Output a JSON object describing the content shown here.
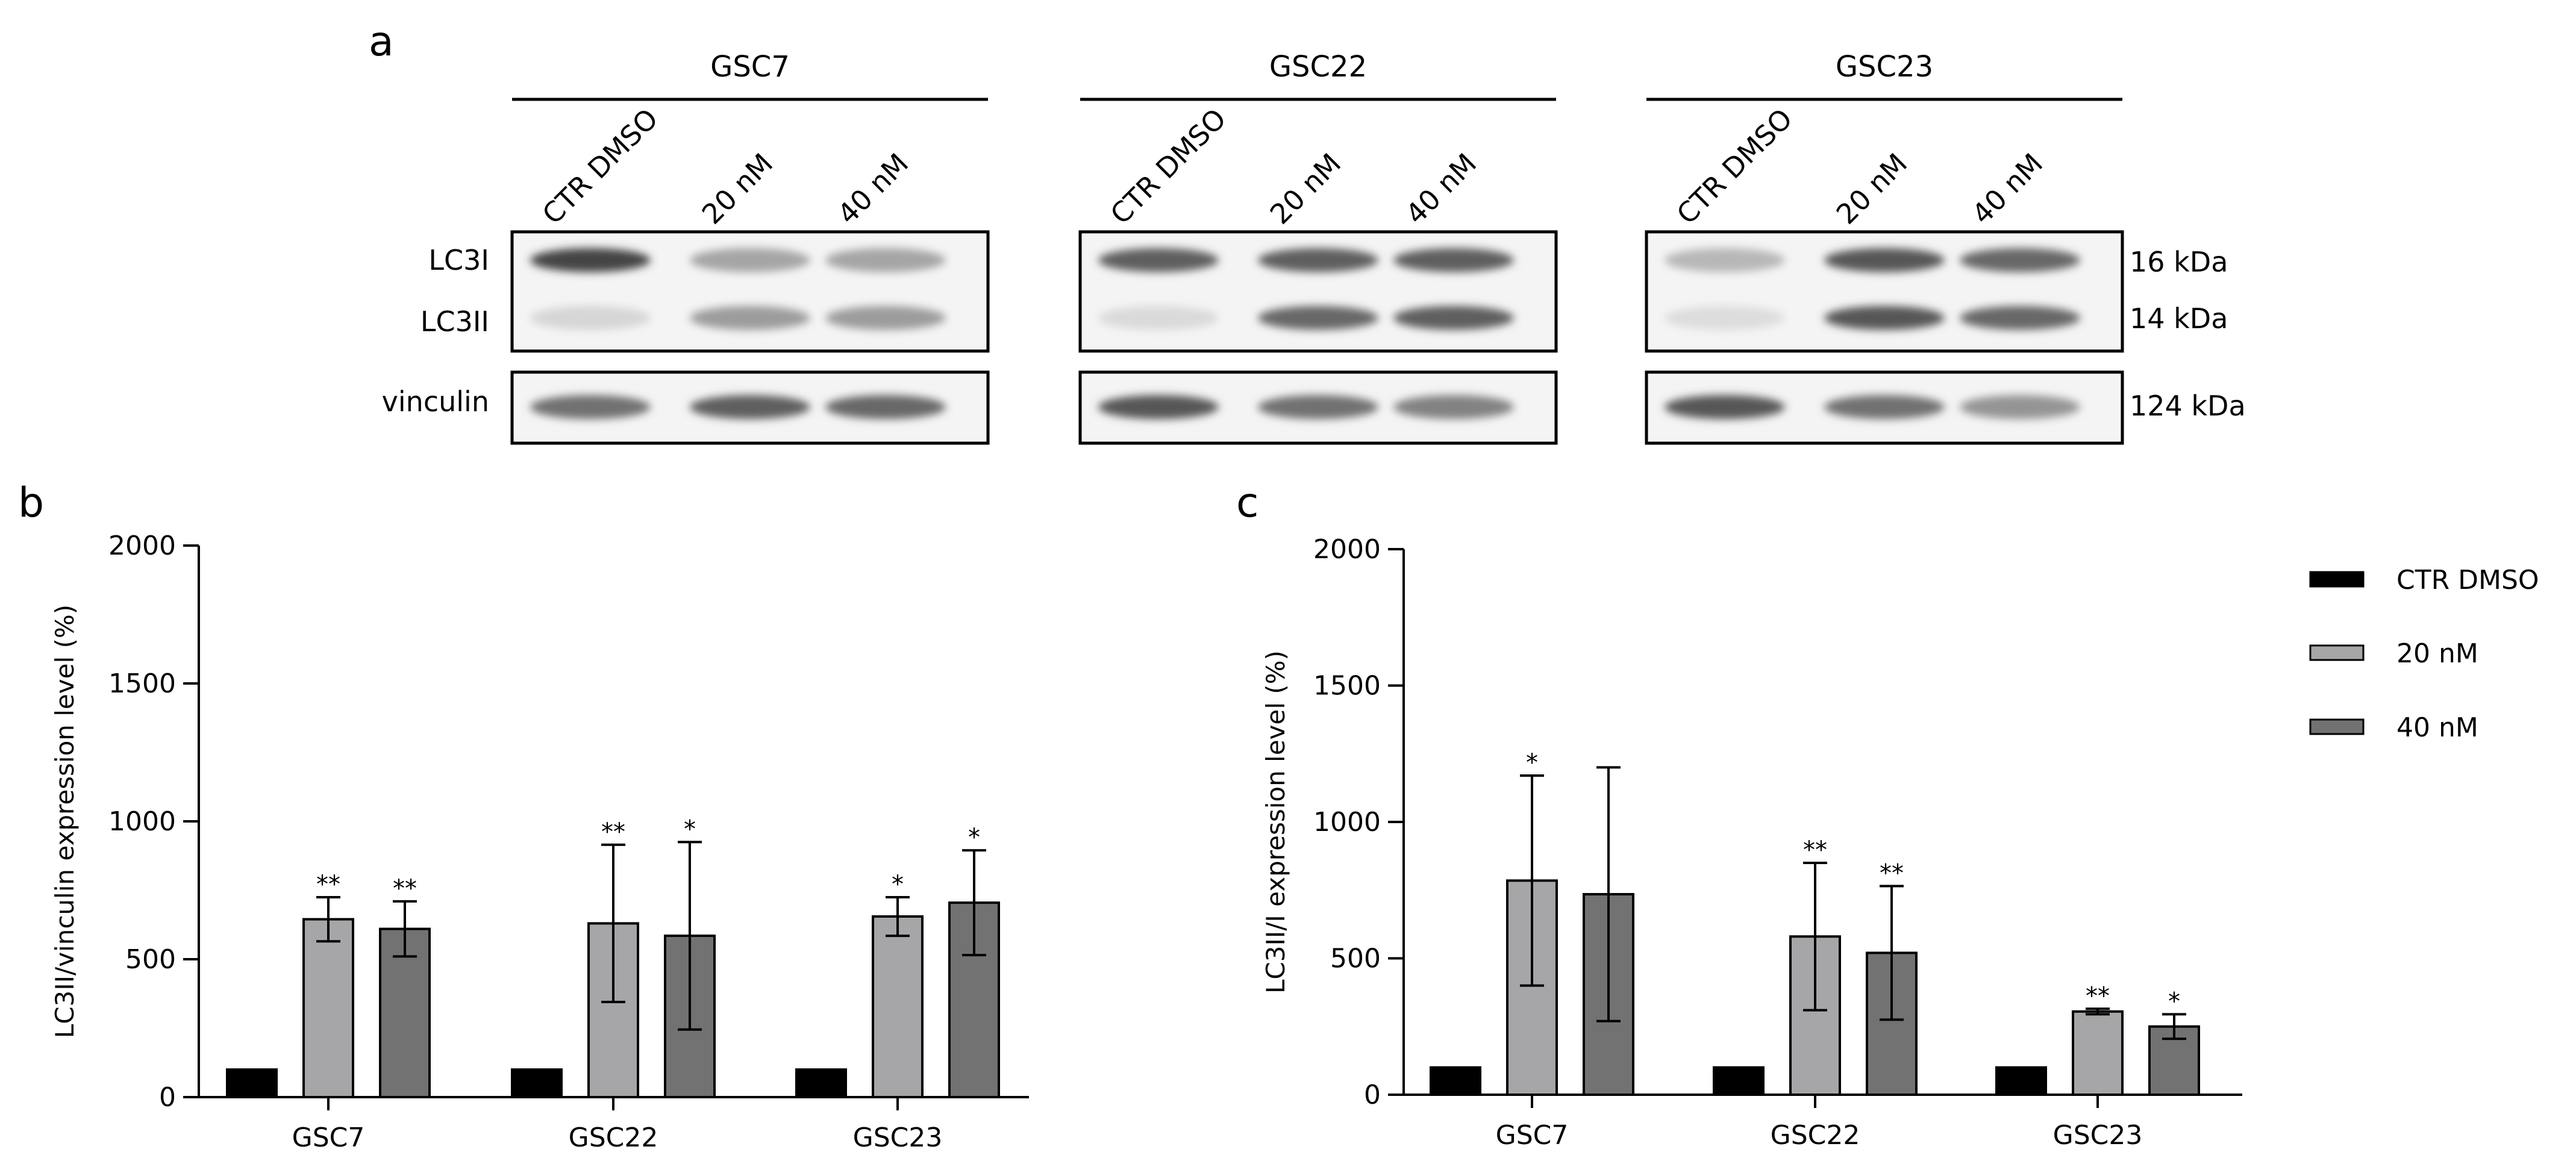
{
  "panel_labels": {
    "a": "a",
    "b": "b",
    "c": "c"
  },
  "blot": {
    "cell_lines": [
      {
        "name": "GSC7",
        "lanes": [
          "CTR DMSO",
          "20 nM",
          "40 nM"
        ],
        "lc3i": [
          0.95,
          0.4,
          0.4
        ],
        "lc3ii": [
          0.12,
          0.45,
          0.45
        ],
        "vinculin": [
          0.7,
          0.8,
          0.75
        ]
      },
      {
        "name": "GSC22",
        "lanes": [
          "CTR DMSO",
          "20 nM",
          "40 nM"
        ],
        "lc3i": [
          0.8,
          0.8,
          0.8
        ],
        "lc3ii": [
          0.1,
          0.75,
          0.8
        ],
        "vinculin": [
          0.85,
          0.7,
          0.6
        ]
      },
      {
        "name": "GSC23",
        "lanes": [
          "CTR DMSO",
          "20 nM",
          "40 nM"
        ],
        "lc3i": [
          0.3,
          0.85,
          0.75
        ],
        "lc3ii": [
          0.08,
          0.85,
          0.75
        ],
        "vinculin": [
          0.85,
          0.7,
          0.5
        ]
      }
    ],
    "protein_labels": [
      "LC3I",
      "LC3II",
      "vinculin"
    ],
    "kda_labels": [
      "16 kDa",
      "14 kDa",
      "124 kDa"
    ]
  },
  "legend": {
    "items": [
      {
        "label": "CTR DMSO",
        "color": "#000000"
      },
      {
        "label": "20 nM",
        "color": "#a6a6a8"
      },
      {
        "label": "40 nM",
        "color": "#727272"
      }
    ]
  },
  "chart_data": [
    {
      "type": "bar",
      "panel": "b",
      "categories": [
        "GSC7",
        "GSC22",
        "GSC23"
      ],
      "ylabel": "LC3II/vinculin expression level (%)",
      "ylim": [
        0,
        2000
      ],
      "yticks": [
        "0",
        "500",
        "1000",
        "1500",
        "2000"
      ],
      "series": [
        {
          "name": "CTR DMSO",
          "values": [
            100,
            100,
            100
          ],
          "errors": [
            0,
            0,
            0
          ],
          "sig": [
            "",
            "",
            ""
          ],
          "color": "#000000"
        },
        {
          "name": "20 nM",
          "values": [
            645,
            630,
            655
          ],
          "errors": [
            80,
            285,
            70
          ],
          "sig": [
            "**",
            "**",
            "*"
          ],
          "color": "#a6a6a8"
        },
        {
          "name": "40 nM",
          "values": [
            610,
            585,
            705
          ],
          "errors": [
            100,
            340,
            190
          ],
          "sig": [
            "**",
            "*",
            "*"
          ],
          "color": "#727272"
        }
      ]
    },
    {
      "type": "bar",
      "panel": "c",
      "categories": [
        "GSC7",
        "GSC22",
        "GSC23"
      ],
      "ylabel": "LC3II/I expression level (%)",
      "ylim": [
        0,
        2000
      ],
      "yticks": [
        "0",
        "500",
        "1000",
        "1500",
        "2000"
      ],
      "series": [
        {
          "name": "CTR DMSO",
          "values": [
            100,
            100,
            100
          ],
          "errors": [
            0,
            0,
            0
          ],
          "sig": [
            "",
            "",
            ""
          ],
          "color": "#000000"
        },
        {
          "name": "20 nM",
          "values": [
            785,
            580,
            305
          ],
          "errors": [
            385,
            270,
            10
          ],
          "sig": [
            "*",
            "**",
            "**"
          ],
          "color": "#a6a6a8"
        },
        {
          "name": "40 nM",
          "values": [
            735,
            520,
            250
          ],
          "errors": [
            465,
            245,
            45
          ],
          "sig": [
            "",
            "**",
            "*"
          ],
          "color": "#727272"
        }
      ]
    }
  ]
}
